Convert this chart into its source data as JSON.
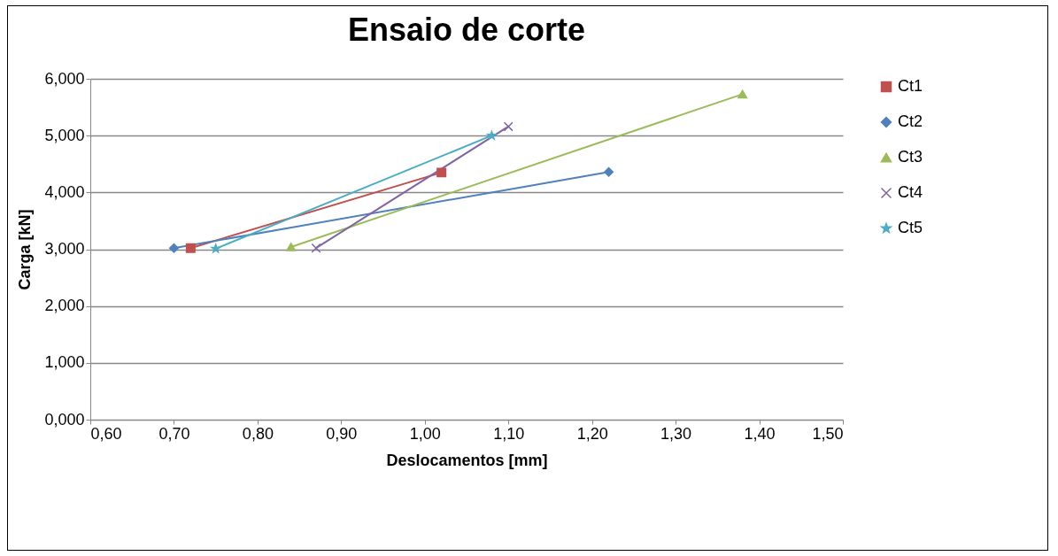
{
  "chart_data": {
    "type": "line",
    "title": "Ensaio de corte",
    "xlabel": "Deslocamentos [mm]",
    "ylabel": "Carga [kN]",
    "xlim": [
      0.6,
      1.5
    ],
    "ylim": [
      0,
      6
    ],
    "xticks": [
      {
        "value": 0.6,
        "label": "0,60"
      },
      {
        "value": 0.7,
        "label": "0,70"
      },
      {
        "value": 0.8,
        "label": "0,80"
      },
      {
        "value": 0.9,
        "label": "0,90"
      },
      {
        "value": 1.0,
        "label": "1,00"
      },
      {
        "value": 1.1,
        "label": "1,10"
      },
      {
        "value": 1.2,
        "label": "1,20"
      },
      {
        "value": 1.3,
        "label": "1,30"
      },
      {
        "value": 1.4,
        "label": "1,40"
      },
      {
        "value": 1.5,
        "label": "1,50"
      }
    ],
    "yticks": [
      {
        "value": 0,
        "label": "0,000"
      },
      {
        "value": 1,
        "label": "1,000"
      },
      {
        "value": 2,
        "label": "2,000"
      },
      {
        "value": 3,
        "label": "3,000"
      },
      {
        "value": 4,
        "label": "4,000"
      },
      {
        "value": 5,
        "label": "5,000"
      },
      {
        "value": 6,
        "label": "6,000"
      }
    ],
    "grid": "y",
    "legend": "right",
    "line_style": "solid",
    "series": [
      {
        "name": "Ct1",
        "color": "#c0504d",
        "marker": "square",
        "x": [
          0.72,
          1.02
        ],
        "values": [
          3.02,
          4.35
        ]
      },
      {
        "name": "Ct2",
        "color": "#4f81bd",
        "marker": "diamond",
        "x": [
          0.7,
          1.22
        ],
        "values": [
          3.02,
          4.36
        ]
      },
      {
        "name": "Ct3",
        "color": "#9bbb59",
        "marker": "triangle",
        "x": [
          0.84,
          1.38
        ],
        "values": [
          3.04,
          5.73
        ]
      },
      {
        "name": "Ct4",
        "color": "#8064a2",
        "marker": "cross",
        "x": [
          0.87,
          1.1
        ],
        "values": [
          3.02,
          5.16
        ]
      },
      {
        "name": "Ct5",
        "color": "#4bacc6",
        "marker": "star",
        "x": [
          0.75,
          1.08
        ],
        "values": [
          3.01,
          5.0
        ]
      }
    ]
  }
}
